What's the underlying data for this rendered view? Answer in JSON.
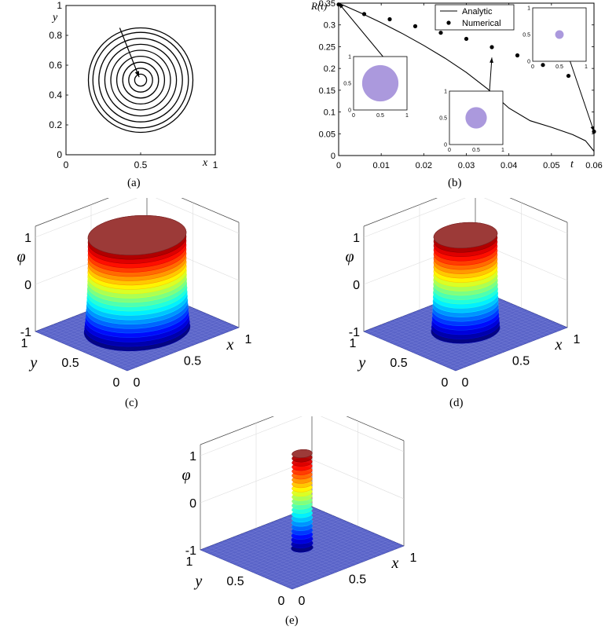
{
  "figure": {
    "captions": [
      "(a)",
      "(b)",
      "(c)",
      "(d)",
      "(e)"
    ]
  },
  "panel_a": {
    "xlabel": "x",
    "ylabel": "y",
    "xticks": [
      "0",
      "0.5",
      "1"
    ],
    "yticks": [
      "0",
      "0.2",
      "0.4",
      "0.6",
      "0.8",
      "1"
    ],
    "contour_radii": [
      0.04,
      0.08,
      0.12,
      0.16,
      0.2,
      0.24,
      0.28,
      0.32,
      0.35
    ],
    "center": [
      0.5,
      0.5
    ],
    "arrow_from": [
      0.36,
      0.85
    ],
    "arrow_to": [
      0.49,
      0.52
    ]
  },
  "chart_data": {
    "type": "line",
    "xlabel": "t",
    "ylabel": "R(t)",
    "xlim": [
      0,
      0.06
    ],
    "ylim": [
      0,
      0.35
    ],
    "xticks": [
      "0",
      "0.01",
      "0.02",
      "0.03",
      "0.04",
      "0.05",
      "0.06"
    ],
    "yticks": [
      "0",
      "0.05",
      "0.1",
      "0.15",
      "0.2",
      "0.25",
      "0.3",
      "0.35"
    ],
    "legend_position": "top",
    "series": [
      {
        "name": "Analytic",
        "style": "line",
        "x": [
          0,
          0.005,
          0.01,
          0.015,
          0.02,
          0.025,
          0.03,
          0.035,
          0.04,
          0.045,
          0.05,
          0.055,
          0.058,
          0.06
        ],
        "y": [
          0.35,
          0.3283,
          0.305,
          0.28,
          0.253,
          0.2236,
          0.1908,
          0.153,
          0.109,
          0.08,
          0.065,
          0.048,
          0.034,
          0.01
        ]
      },
      {
        "name": "Numerical",
        "style": "markers",
        "x": [
          0,
          0.006,
          0.012,
          0.018,
          0.024,
          0.03,
          0.036,
          0.042,
          0.048,
          0.054,
          0.06
        ],
        "y": [
          0.347,
          0.325,
          0.313,
          0.297,
          0.282,
          0.268,
          0.249,
          0.23,
          0.208,
          0.183,
          0.055
        ]
      }
    ],
    "insets": [
      {
        "disk_radius": 0.34,
        "axis_ticks_x": [
          "0",
          "0.5",
          "1"
        ],
        "axis_ticks_y": [
          "0",
          "0.5",
          "1"
        ],
        "points_to": [
          0,
          0.35
        ]
      },
      {
        "disk_radius": 0.2,
        "axis_ticks_x": [
          "0",
          "0.5",
          "1"
        ],
        "axis_ticks_y": [
          "0",
          "0.5",
          "1"
        ],
        "points_to": [
          0.036,
          0.225
        ]
      },
      {
        "disk_radius": 0.08,
        "axis_ticks_x": [
          "0",
          "0.5",
          "1"
        ],
        "axis_ticks_y": [
          "0",
          "0.5",
          "1"
        ],
        "points_to": [
          0.06,
          0.055
        ]
      }
    ],
    "inset_color": "#ab99dd"
  },
  "surfaces": [
    {
      "id": "c",
      "phi_label": "φ",
      "x_label": "x",
      "y_label": "y",
      "z_ticks": [
        "1",
        "0",
        "-1"
      ],
      "x_ticks": [
        "0",
        "0.5",
        "1"
      ],
      "y_ticks": [
        "0",
        "0.5",
        "1"
      ],
      "radius": 0.34
    },
    {
      "id": "d",
      "phi_label": "φ",
      "x_label": "x",
      "y_label": "y",
      "z_ticks": [
        "1",
        "0",
        "-1"
      ],
      "x_ticks": [
        "0",
        "0.5",
        "1"
      ],
      "y_ticks": [
        "0",
        "0.5",
        "1"
      ],
      "radius": 0.22
    },
    {
      "id": "e",
      "phi_label": "φ",
      "x_label": "x",
      "y_label": "y",
      "z_ticks": [
        "1",
        "0",
        "-1"
      ],
      "x_ticks": [
        "0",
        "0.5",
        "1"
      ],
      "y_ticks": [
        "0",
        "0.5",
        "1"
      ],
      "radius": 0.07
    }
  ]
}
